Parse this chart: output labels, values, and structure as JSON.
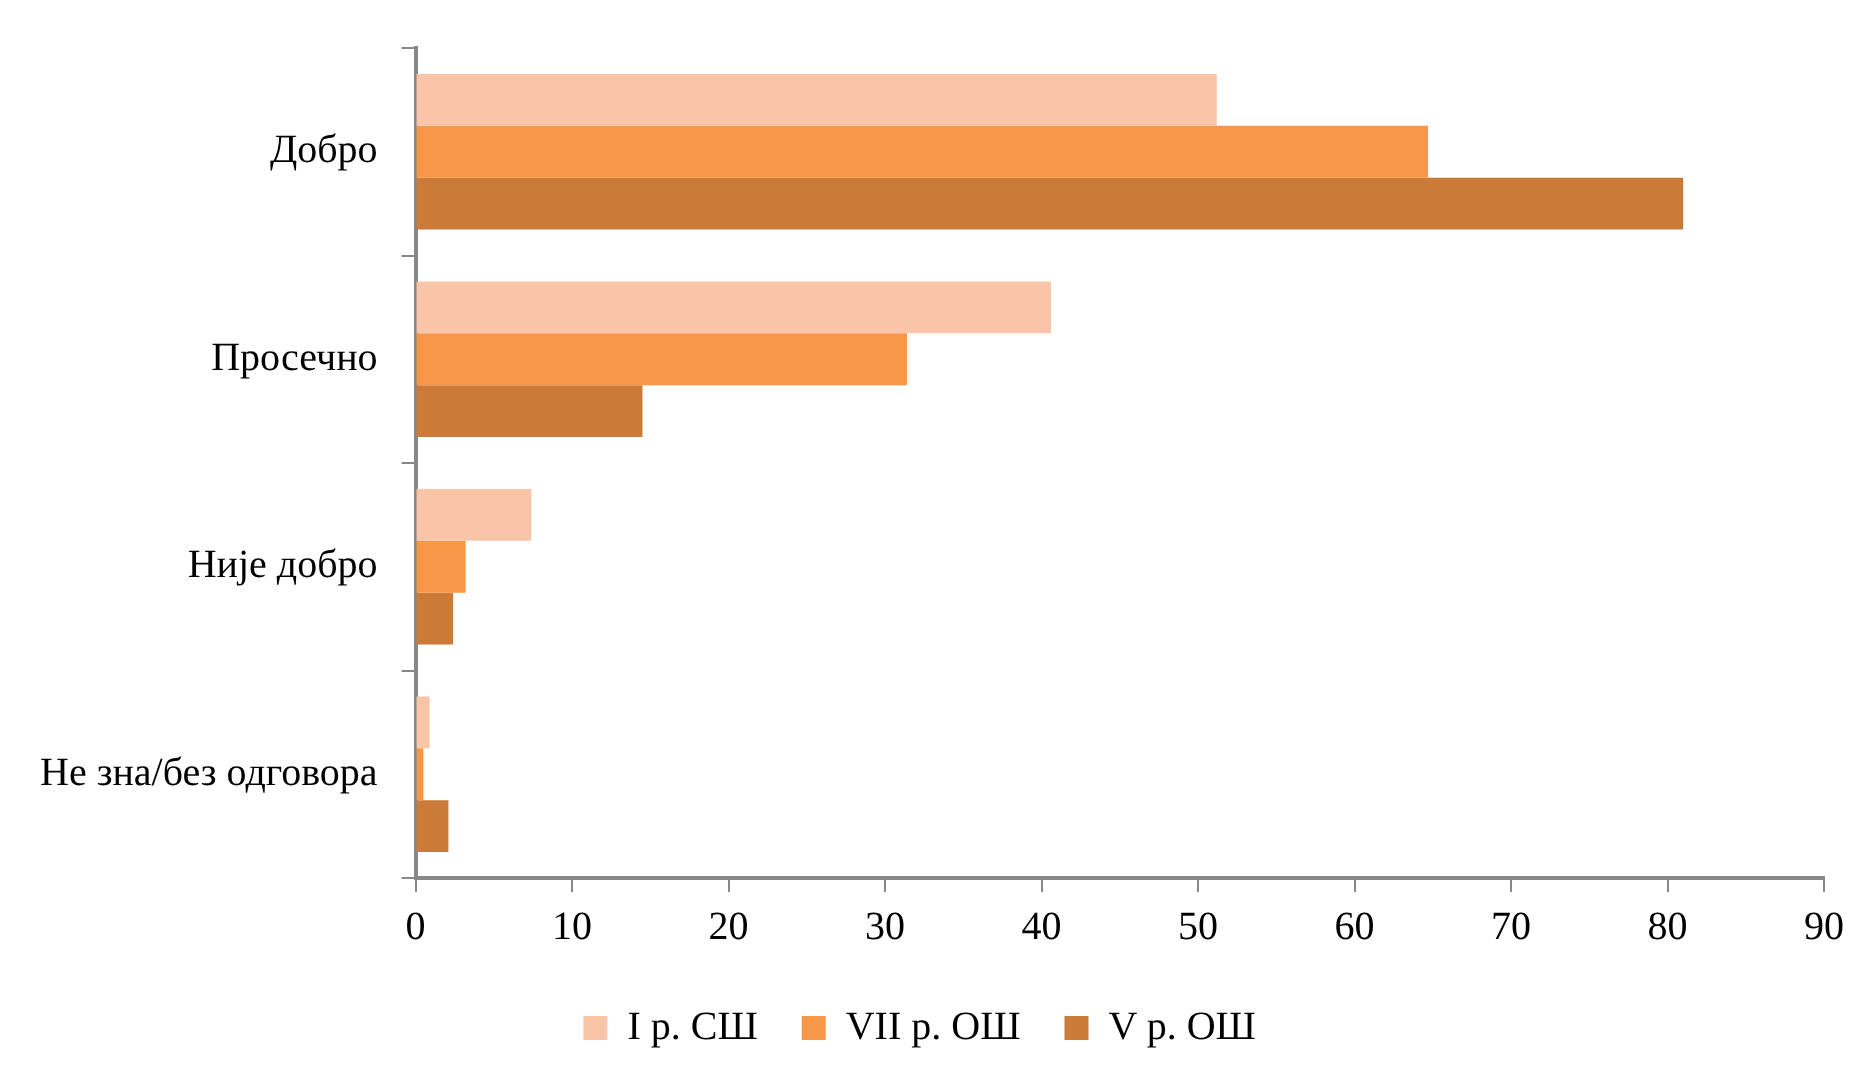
{
  "chart_data": {
    "type": "bar",
    "orientation": "horizontal",
    "categories": [
      "Добро",
      "Просечно",
      "Није добро",
      "Не зна/без одговора"
    ],
    "series": [
      {
        "name": "I р. СШ",
        "color": "#fac4a9",
        "values": [
          51.2,
          40.6,
          7.4,
          0.9
        ]
      },
      {
        "name": "VII р. ОШ",
        "color": "#f79646",
        "values": [
          64.7,
          31.4,
          3.2,
          0.5
        ]
      },
      {
        "name": "V р. ОШ",
        "color": "#cb7a37",
        "values": [
          81,
          14.5,
          2.4,
          2.1
        ]
      }
    ],
    "xlim": [
      0,
      90
    ],
    "xticks": [
      0,
      10,
      20,
      30,
      40,
      50,
      60,
      70,
      80,
      90
    ],
    "grid": false,
    "legend": "bottom"
  }
}
